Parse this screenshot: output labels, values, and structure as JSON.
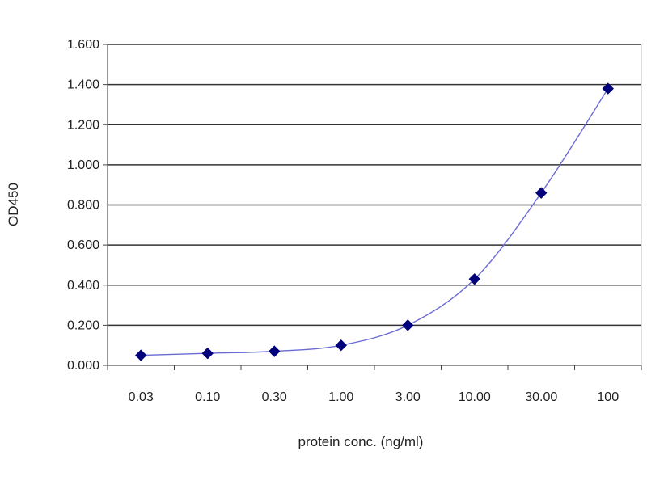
{
  "chart_data": {
    "type": "line",
    "xlabel": "protein conc. (ng/ml)",
    "ylabel": "OD450",
    "x_scale": "log",
    "categories": [
      "0.03",
      "0.10",
      "0.30",
      "1.00",
      "3.00",
      "10.00",
      "30.00",
      "100"
    ],
    "series": [
      {
        "x": [
          0.03,
          0.1,
          0.3,
          1.0,
          3.0,
          10.0,
          30.0,
          100
        ],
        "values": [
          0.05,
          0.06,
          0.07,
          0.1,
          0.2,
          0.43,
          0.86,
          1.38
        ],
        "color": "#00007a",
        "line_color": "#6b6bd6",
        "marker": "diamond"
      }
    ],
    "yticks": [
      "0.000",
      "0.200",
      "0.400",
      "0.600",
      "0.800",
      "1.000",
      "1.200",
      "1.400",
      "1.600"
    ],
    "ylim": [
      0,
      1.6
    ],
    "grid": "horizontal",
    "legend": "none"
  }
}
